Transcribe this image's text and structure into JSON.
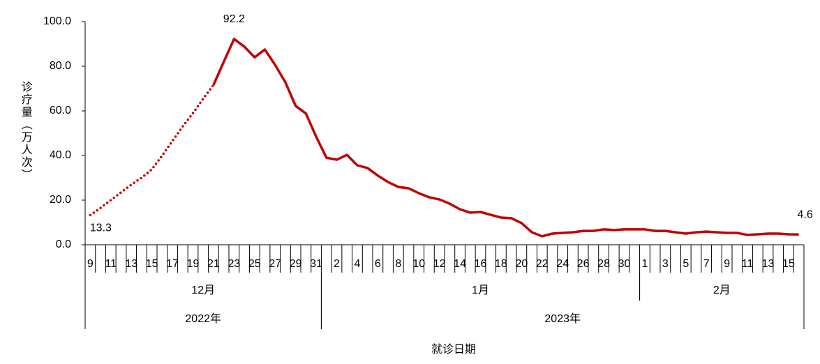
{
  "chart_data": {
    "type": "line",
    "y_label": "诊疗量（万人次）",
    "x_label": "就诊日期",
    "categories": [
      "9",
      null,
      "11",
      null,
      "13",
      null,
      "15",
      null,
      "17",
      null,
      "19",
      null,
      "21",
      null,
      "23",
      null,
      "25",
      null,
      "27",
      null,
      "29",
      null,
      "31",
      null,
      "2",
      null,
      "4",
      null,
      "6",
      null,
      "8",
      null,
      "10",
      null,
      "12",
      null,
      "14",
      null,
      "16",
      null,
      "18",
      null,
      "20",
      null,
      "22",
      null,
      "24",
      null,
      "26",
      null,
      "28",
      null,
      "30",
      null,
      "1",
      null,
      "3",
      null,
      "5",
      null,
      "7",
      null,
      "9",
      null,
      "11",
      null,
      "13",
      null,
      "15",
      null
    ],
    "month_groups": [
      {
        "label": "12月",
        "span": 23
      },
      {
        "label": "1月",
        "span": 31
      },
      {
        "label": "2月",
        "span": 16
      }
    ],
    "year_groups": [
      {
        "label": "2022年",
        "span": 23
      },
      {
        "label": "2023年",
        "span": 47
      }
    ],
    "series": [
      {
        "color": "#c00000",
        "dash": "dotted",
        "values": [
          13.3,
          16.5,
          20,
          23.5,
          27,
          30,
          33.8,
          40,
          46.5,
          53,
          59,
          65.5,
          71.6,
          null,
          null,
          null,
          null,
          null,
          null,
          null,
          null,
          null,
          null,
          null,
          null,
          null,
          null,
          null,
          null,
          null,
          null,
          null,
          null,
          null,
          null,
          null,
          null,
          null,
          null,
          null,
          null,
          null,
          null,
          null,
          null,
          null,
          null,
          null,
          null,
          null,
          null,
          null,
          null,
          null,
          null,
          null,
          null,
          null,
          null,
          null,
          null,
          null,
          null,
          null,
          null,
          null,
          null,
          null,
          null,
          null
        ]
      },
      {
        "color": "#c00000",
        "dash": "solid",
        "values": [
          null,
          null,
          null,
          null,
          null,
          null,
          null,
          null,
          null,
          null,
          null,
          null,
          71.6,
          82,
          92.2,
          88.8,
          84,
          87.5,
          80.6,
          72.8,
          62.2,
          58.8,
          48.4,
          39,
          38.1,
          40.3,
          35.6,
          34.4,
          31,
          28.1,
          25.9,
          25.3,
          23.1,
          21.3,
          20.3,
          18.4,
          15.9,
          14.4,
          14.7,
          13.4,
          12.2,
          11.9,
          9.7,
          5.6,
          3.8,
          5,
          5.3,
          5.6,
          6.2,
          6.2,
          6.9,
          6.6,
          6.9,
          6.9,
          6.9,
          6.2,
          6.2,
          5.6,
          5,
          5.6,
          5.9,
          5.6,
          5.3,
          5.3,
          4.4,
          4.7,
          5,
          5,
          4.7,
          4.6
        ]
      }
    ],
    "labeled_points": [
      [
        0,
        0
      ],
      [
        1,
        14
      ],
      [
        1,
        69
      ]
    ],
    "ylim": [
      0,
      100
    ],
    "yticks": [
      {
        "value": 0,
        "label": "0.0"
      },
      {
        "value": 20,
        "label": "20.0"
      },
      {
        "value": 40,
        "label": "40.0"
      },
      {
        "value": 60,
        "label": "60.0"
      },
      {
        "value": 80,
        "label": "80.0"
      },
      {
        "value": 100,
        "label": "100.0"
      }
    ]
  }
}
